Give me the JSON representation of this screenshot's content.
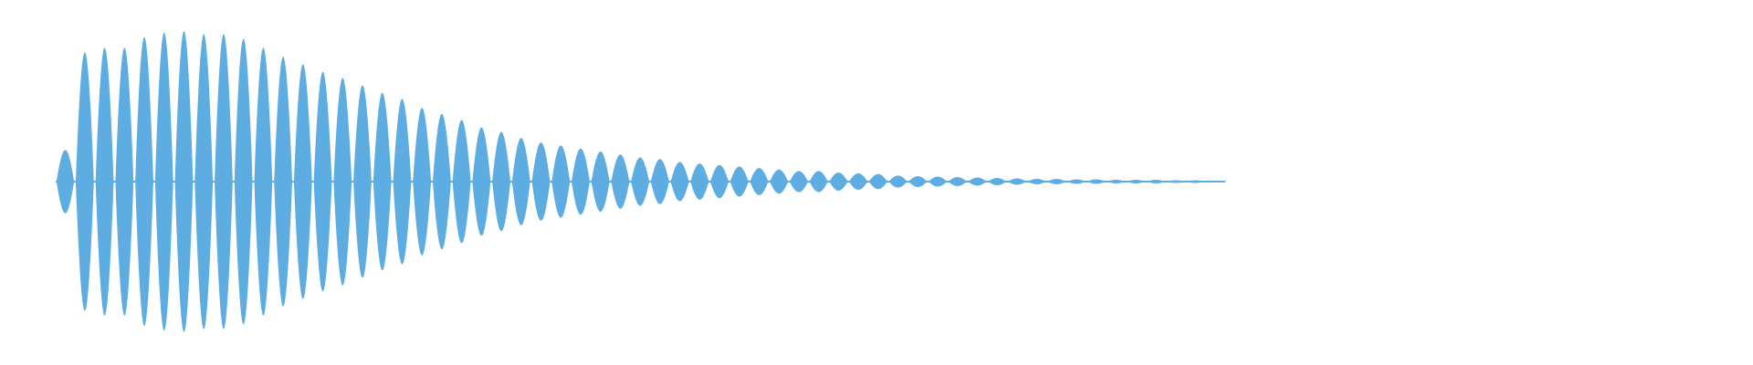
{
  "waveform": {
    "color": "#5DACE2",
    "background": "#FFFFFF",
    "lobe_amplitudes": [
      0.21,
      0.86,
      0.89,
      0.89,
      0.96,
      0.99,
      1.0,
      0.98,
      0.98,
      0.95,
      0.89,
      0.83,
      0.78,
      0.73,
      0.69,
      0.64,
      0.59,
      0.55,
      0.49,
      0.45,
      0.41,
      0.36,
      0.33,
      0.29,
      0.26,
      0.24,
      0.22,
      0.2,
      0.18,
      0.16,
      0.15,
      0.13,
      0.12,
      0.11,
      0.1,
      0.09,
      0.08,
      0.07,
      0.07,
      0.06,
      0.055,
      0.05,
      0.04,
      0.036,
      0.033,
      0.03,
      0.027,
      0.024,
      0.021,
      0.018,
      0.018,
      0.015,
      0.015,
      0.012,
      0.012,
      0.012,
      0.009,
      0.009,
      0.006
    ]
  }
}
